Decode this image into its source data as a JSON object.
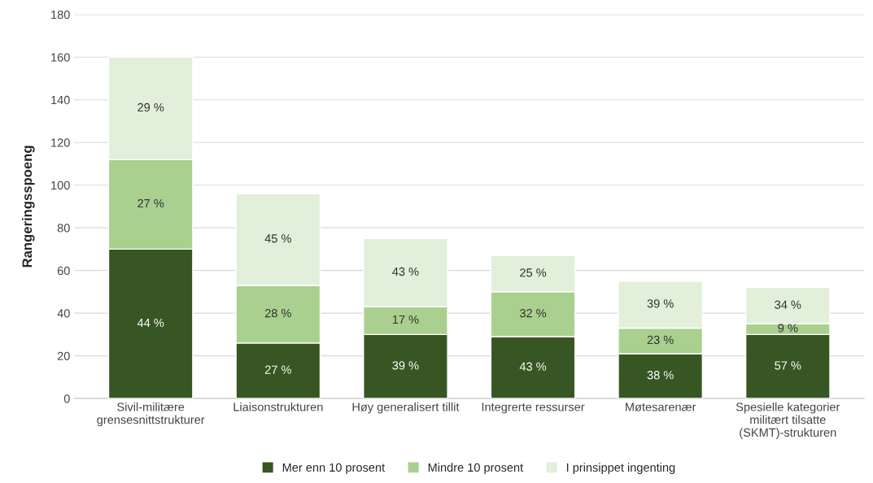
{
  "chart_data": {
    "type": "bar",
    "stacked": true,
    "ylabel": "Rangeringsspoeng",
    "categories": [
      "Sivil-militære\ngrensesnittstrukturer",
      "Liaisonstrukturen",
      "Høy generalisert tillit",
      "Integrerte ressurser",
      "Møtesarenær",
      "Spesielle kategorier\nmilitært tilsatte\n(SKMT)-strukturen"
    ],
    "series": [
      {
        "name": "Mer enn 10 prosent",
        "color": "#375623",
        "values": [
          70,
          26,
          30,
          29,
          21,
          30
        ]
      },
      {
        "name": "Mindre 10 prosent",
        "color": "#a9d08e",
        "values": [
          42,
          27,
          13,
          21,
          12,
          5
        ]
      },
      {
        "name": "I prinsippet ingenting",
        "color": "#e2efda",
        "values": [
          48,
          43,
          32,
          17,
          22,
          17
        ]
      }
    ],
    "annotations": [
      "44 %",
      "27 %",
      "39 %",
      "43 %",
      "38 %",
      "57 %",
      "27 %",
      "28 %",
      "17 %",
      "32 %",
      "23 %",
      "9 %",
      "29 %",
      "45 %",
      "43 %",
      "25 %",
      "39 %",
      "34 %"
    ],
    "ylim": [
      0,
      180
    ],
    "yticks": [
      0,
      20,
      40,
      60,
      80,
      100,
      120,
      140,
      160,
      180
    ],
    "grid": "y",
    "legend": "bottom"
  }
}
